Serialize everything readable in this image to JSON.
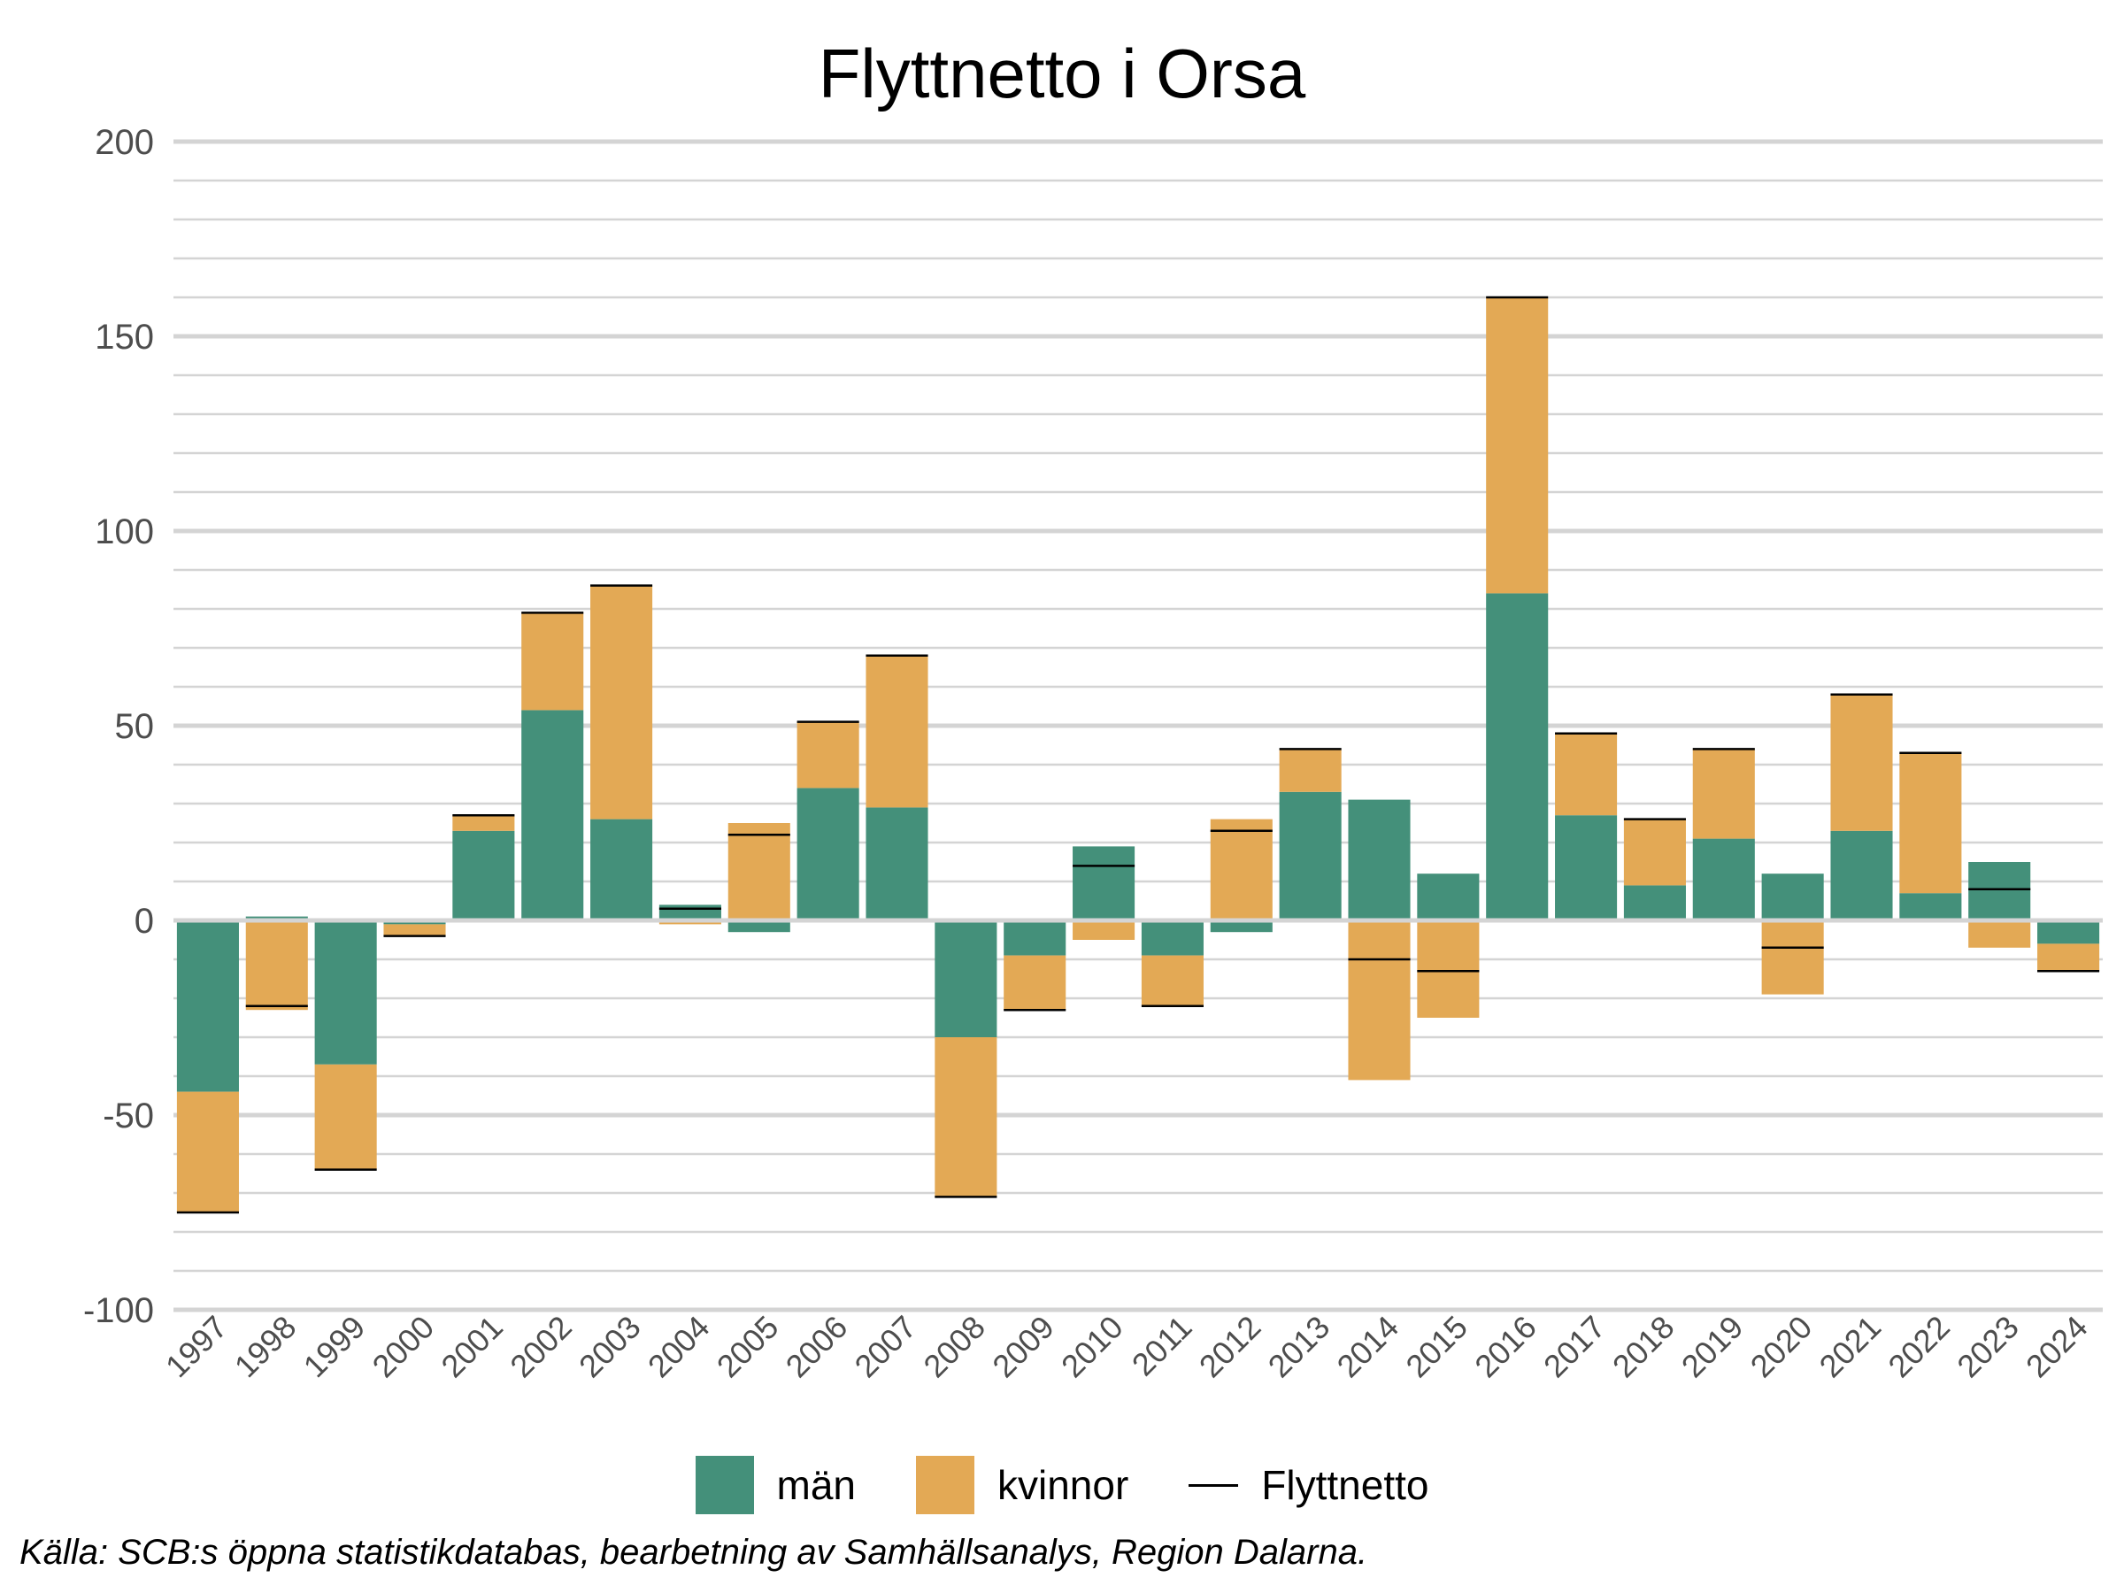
{
  "chart_data": {
    "type": "bar",
    "stacked": true,
    "title": "Flyttnetto i Orsa",
    "xlabel": "",
    "ylabel": "",
    "ylim": [
      -100,
      200
    ],
    "y_ticks": [
      -100,
      -50,
      0,
      50,
      100,
      150,
      200
    ],
    "grid": true,
    "legend_position": "bottom",
    "categories": [
      "1997",
      "1998",
      "1999",
      "2000",
      "2001",
      "2002",
      "2003",
      "2004",
      "2005",
      "2006",
      "2007",
      "2008",
      "2009",
      "2010",
      "2011",
      "2012",
      "2013",
      "2014",
      "2015",
      "2016",
      "2017",
      "2018",
      "2019",
      "2020",
      "2021",
      "2022",
      "2023",
      "2024"
    ],
    "series": [
      {
        "name": "män",
        "color": "#44907A",
        "values": [
          -44,
          1,
          -37,
          -1,
          23,
          54,
          26,
          4,
          -3,
          34,
          29,
          -30,
          -9,
          19,
          -9,
          -3,
          33,
          31,
          12,
          84,
          27,
          9,
          21,
          12,
          23,
          7,
          15,
          -6
        ]
      },
      {
        "name": "kvinnor",
        "color": "#E3A955",
        "values": [
          -31,
          -23,
          -27,
          -3,
          4,
          25,
          60,
          -1,
          25,
          17,
          39,
          -41,
          -14,
          -5,
          -13,
          26,
          11,
          -41,
          -25,
          76,
          21,
          17,
          23,
          -19,
          35,
          36,
          -7,
          -7
        ]
      }
    ],
    "net_line": {
      "name": "Flyttnetto",
      "color": "#000000",
      "values": [
        -75,
        -22,
        -64,
        -4,
        27,
        79,
        86,
        3,
        22,
        51,
        68,
        -71,
        -23,
        14,
        -22,
        23,
        44,
        -10,
        -13,
        160,
        48,
        26,
        44,
        -7,
        58,
        43,
        8,
        -13
      ]
    },
    "caption": "Källa: SCB:s öppna statistikdatabas, bearbetning av Samhällsanalys, Region Dalarna."
  }
}
